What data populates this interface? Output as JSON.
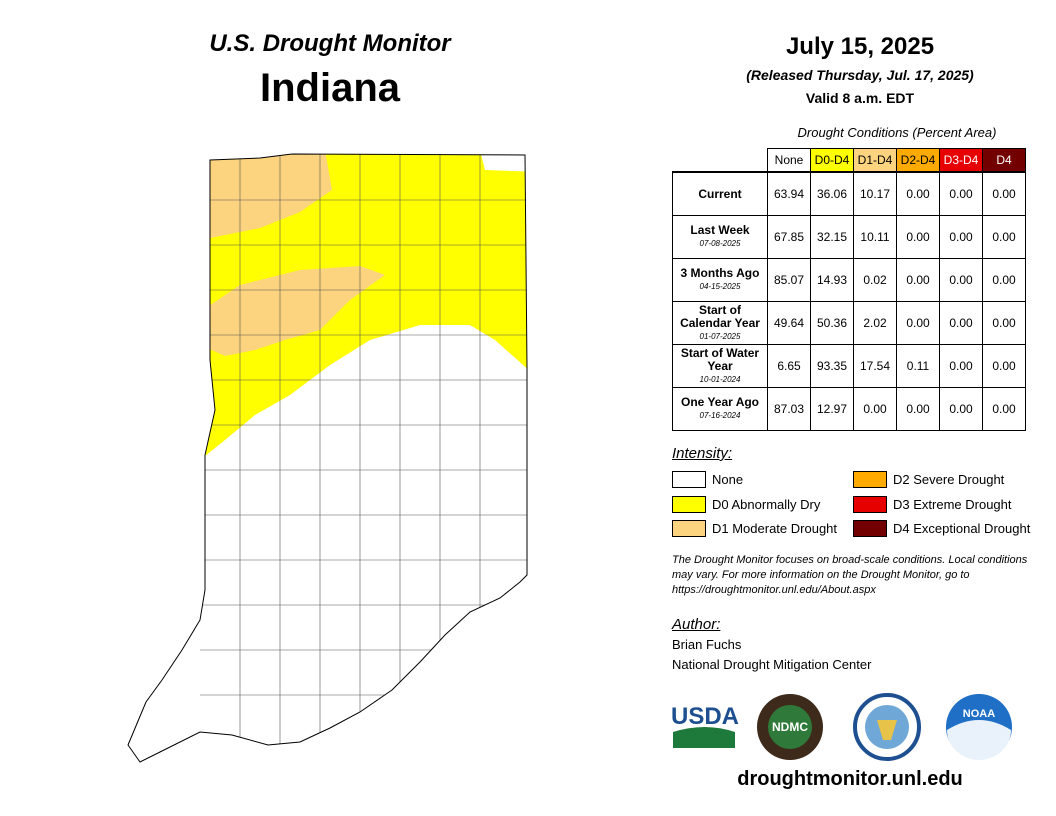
{
  "header": {
    "title": "U.S. Drought Monitor",
    "state": "Indiana",
    "date": "July 15, 2025",
    "released": "(Released Thursday, Jul. 17, 2025)",
    "valid": "Valid 8 a.m. EDT"
  },
  "table": {
    "caption": "Drought Conditions (Percent Area)",
    "columns": [
      {
        "label": "None",
        "color": "#ffffff",
        "text": "#000000"
      },
      {
        "label": "D0-D4",
        "color": "#ffff00",
        "text": "#000000"
      },
      {
        "label": "D1-D4",
        "color": "#fcd37f",
        "text": "#000000"
      },
      {
        "label": "D2-D4",
        "color": "#ffaa00",
        "text": "#000000"
      },
      {
        "label": "D3-D4",
        "color": "#e60000",
        "text": "#ffffff"
      },
      {
        "label": "D4",
        "color": "#730000",
        "text": "#ffffff"
      }
    ],
    "rows": [
      {
        "label": "Current",
        "values": [
          "63.94",
          "36.06",
          "10.17",
          "0.00",
          "0.00",
          "0.00"
        ]
      },
      {
        "label": "Last Week",
        "date": "07-08-2025",
        "values": [
          "67.85",
          "32.15",
          "10.11",
          "0.00",
          "0.00",
          "0.00"
        ]
      },
      {
        "label": "3 Months Ago",
        "date": "04-15-2025",
        "values": [
          "85.07",
          "14.93",
          "0.02",
          "0.00",
          "0.00",
          "0.00"
        ]
      },
      {
        "label": "Start of Calendar Year",
        "date": "01-07-2025",
        "values": [
          "49.64",
          "50.36",
          "2.02",
          "0.00",
          "0.00",
          "0.00"
        ]
      },
      {
        "label": "Start of Water Year",
        "date": "10-01-2024",
        "values": [
          "6.65",
          "93.35",
          "17.54",
          "0.11",
          "0.00",
          "0.00"
        ]
      },
      {
        "label": "One Year Ago",
        "date": "07-16-2024",
        "values": [
          "87.03",
          "12.97",
          "0.00",
          "0.00",
          "0.00",
          "0.00"
        ]
      }
    ]
  },
  "legend": {
    "title": "Intensity:",
    "items": [
      {
        "label": "None",
        "color": "#ffffff"
      },
      {
        "label": "D0 Abnormally Dry",
        "color": "#ffff00"
      },
      {
        "label": "D1 Moderate Drought",
        "color": "#fcd37f"
      },
      {
        "label": "D2 Severe Drought",
        "color": "#ffaa00"
      },
      {
        "label": "D3 Extreme Drought",
        "color": "#e60000"
      },
      {
        "label": "D4 Exceptional Drought",
        "color": "#730000"
      }
    ]
  },
  "note": "The Drought Monitor focuses on broad-scale conditions. Local conditions may vary. For more information on the Drought Monitor, go to https://droughtmonitor.unl.edu/About.aspx",
  "author": {
    "title": "Author:",
    "name": "Brian Fuchs",
    "org": "National Drought Mitigation Center"
  },
  "logos": {
    "usda": "USDA",
    "ndmc": "NDMC",
    "noaa": "NOAA"
  },
  "website": "droughtmonitor.unl.edu"
}
